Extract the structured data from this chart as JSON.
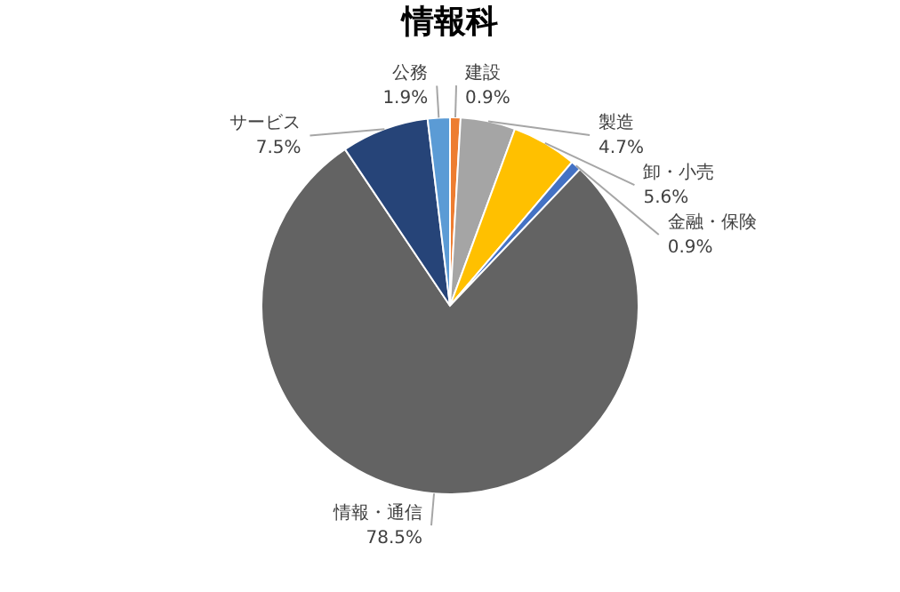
{
  "chart_data": {
    "type": "pie",
    "title": "情報科",
    "categories": [
      "建設",
      "製造",
      "卸・小売",
      "金融・保険",
      "情報・通信",
      "サービス",
      "公務"
    ],
    "values": [
      0.9,
      4.7,
      5.6,
      0.9,
      78.5,
      7.5,
      1.9
    ],
    "value_labels": [
      "0.9%",
      "4.7%",
      "5.6%",
      "0.9%",
      "78.5%",
      "7.5%",
      "1.9%"
    ],
    "colors": [
      "#ed7d31",
      "#a5a5a5",
      "#ffc000",
      "#4472c4",
      "#636363",
      "#264478",
      "#5b9bd5"
    ],
    "legend": false
  }
}
